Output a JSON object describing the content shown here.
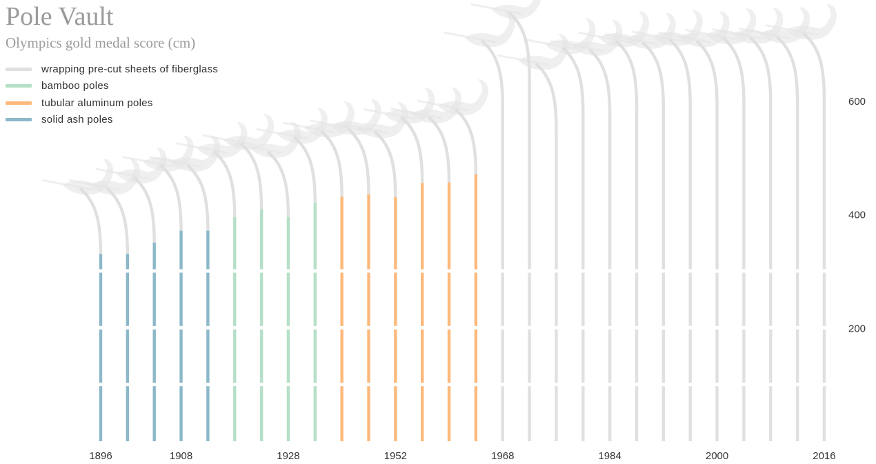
{
  "title": "Pole Vault",
  "subtitle": "Olympics gold medal score (cm)",
  "legend": [
    {
      "key": "fiberglass",
      "label": "wrapping pre-cut sheets of fiberglass",
      "color": "#e0e0e0"
    },
    {
      "key": "bamboo",
      "label": "bamboo poles",
      "color": "#b5dfc6"
    },
    {
      "key": "aluminum",
      "label": "tubular aluminum poles",
      "color": "#fdb97c"
    },
    {
      "key": "ash",
      "label": "solid ash poles",
      "color": "#8cb8c9"
    }
  ],
  "chart_data": {
    "type": "bar",
    "title": "Pole Vault",
    "subtitle": "Olympics gold medal score (cm)",
    "xlabel": "",
    "ylabel": "",
    "ylim": [
      0,
      620
    ],
    "y_ticks": [
      200,
      400,
      600
    ],
    "x_tick_labels": [
      "1896",
      "1908",
      "1928",
      "1952",
      "1968",
      "1984",
      "2000",
      "2016"
    ],
    "grid": false,
    "legend_position": "top-left",
    "categories": [
      "1896",
      "1900",
      "1904",
      "1908",
      "1912",
      "1920",
      "1924",
      "1928",
      "1932",
      "1936",
      "1948",
      "1952",
      "1956",
      "1960",
      "1964",
      "1968",
      "1972",
      "1976",
      "1980",
      "1984",
      "1988",
      "1992",
      "1996",
      "2000",
      "2004",
      "2008",
      "2012",
      "2016"
    ],
    "values": [
      330,
      330,
      350,
      371,
      371,
      395,
      409,
      395,
      420,
      431,
      435,
      430,
      455,
      456,
      470,
      590,
      640,
      550,
      578,
      575,
      590,
      587,
      592,
      590,
      595,
      596,
      597,
      603
    ],
    "pole_material": [
      "ash",
      "ash",
      "ash",
      "ash",
      "ash",
      "bamboo",
      "bamboo",
      "bamboo",
      "bamboo",
      "aluminum",
      "aluminum",
      "aluminum",
      "aluminum",
      "aluminum",
      "aluminum",
      "fiberglass",
      "fiberglass",
      "fiberglass",
      "fiberglass",
      "fiberglass",
      "fiberglass",
      "fiberglass",
      "fiberglass",
      "fiberglass",
      "fiberglass",
      "fiberglass",
      "fiberglass",
      "fiberglass"
    ]
  }
}
